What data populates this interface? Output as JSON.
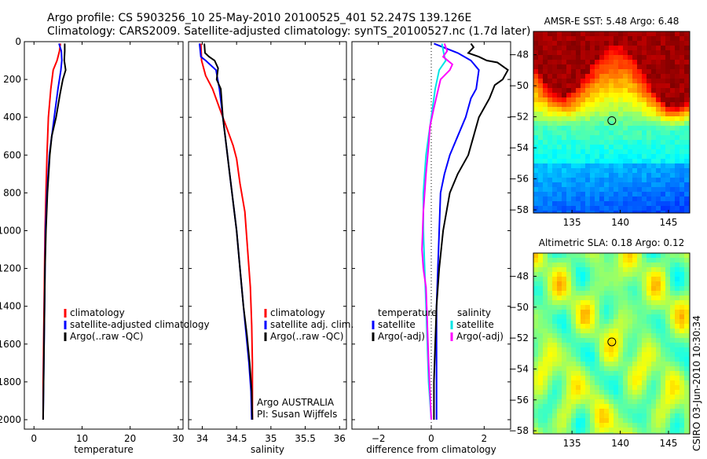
{
  "header": {
    "line1": "Argo profile: CS 5903256_10 25-May-2010 20100525_401 52.247S 139.126E",
    "line2": "Climatology: CARS2009. Satellite-adjusted climatology: synTS_20100527.nc (1.7d later)"
  },
  "footer": "CSIRO 03-Jun-2010 10:30:34",
  "chart_data": [
    {
      "type": "line",
      "xlabel": "temperature",
      "ylabel": "",
      "xlim": [
        -2,
        31
      ],
      "ylim": [
        2050,
        0
      ],
      "xticks": [
        0,
        10,
        20,
        30
      ],
      "yticks": [
        0,
        200,
        400,
        600,
        800,
        1000,
        1200,
        1400,
        1600,
        1800,
        2000
      ],
      "legend": [
        "climatology",
        "satellite-adjusted climatology",
        "Argo(..raw -QC)"
      ],
      "series": [
        {
          "name": "climatology",
          "color": "#ff0000",
          "points": [
            [
              5.5,
              10
            ],
            [
              5.3,
              50
            ],
            [
              4.8,
              100
            ],
            [
              4.0,
              150
            ],
            [
              3.5,
              250
            ],
            [
              3.0,
              400
            ],
            [
              2.7,
              600
            ],
            [
              2.5,
              800
            ],
            [
              2.3,
              1000
            ],
            [
              2.2,
              1200
            ],
            [
              2.1,
              1400
            ],
            [
              2.0,
              1600
            ],
            [
              1.9,
              1800
            ],
            [
              1.9,
              2000
            ]
          ]
        },
        {
          "name": "satellite-adjusted climatology",
          "color": "#0000ff",
          "points": [
            [
              5.2,
              10
            ],
            [
              5.7,
              50
            ],
            [
              5.8,
              100
            ],
            [
              5.6,
              150
            ],
            [
              5.0,
              250
            ],
            [
              4.2,
              400
            ],
            [
              3.2,
              600
            ],
            [
              2.7,
              800
            ],
            [
              2.4,
              1000
            ],
            [
              2.3,
              1200
            ],
            [
              2.2,
              1400
            ],
            [
              2.1,
              1600
            ],
            [
              2.0,
              1800
            ],
            [
              1.9,
              2000
            ]
          ]
        },
        {
          "name": "Argo(..raw -QC)",
          "color": "#000000",
          "points": [
            [
              6.4,
              10
            ],
            [
              6.4,
              50
            ],
            [
              6.3,
              100
            ],
            [
              6.6,
              150
            ],
            [
              6.0,
              200
            ],
            [
              5.4,
              280
            ],
            [
              4.6,
              400
            ],
            [
              3.7,
              500
            ],
            [
              3.3,
              600
            ],
            [
              2.8,
              800
            ],
            [
              2.5,
              1000
            ],
            [
              2.3,
              1200
            ],
            [
              2.2,
              1400
            ],
            [
              2.1,
              1600
            ],
            [
              2.0,
              1800
            ],
            [
              1.9,
              2000
            ]
          ]
        }
      ]
    },
    {
      "type": "line",
      "xlabel": "salinity",
      "xlim": [
        33.8,
        36.1
      ],
      "ylim": [
        2050,
        0
      ],
      "xticks": [
        34,
        34.5,
        35,
        35.5,
        36
      ],
      "yticks": [
        0,
        200,
        400,
        600,
        800,
        1000,
        1200,
        1400,
        1600,
        1800,
        2000
      ],
      "legend": [
        "climatology",
        "satellite adj. clim.",
        "Argo(..raw -QC)"
      ],
      "annotation": [
        "Argo AUSTRALIA",
        "PI: Susan Wijffels"
      ],
      "series": [
        {
          "name": "climatology",
          "color": "#ff0000",
          "points": [
            [
              33.98,
              10
            ],
            [
              33.99,
              100
            ],
            [
              34.05,
              180
            ],
            [
              34.15,
              250
            ],
            [
              34.25,
              350
            ],
            [
              34.35,
              450
            ],
            [
              34.45,
              550
            ],
            [
              34.5,
              620
            ],
            [
              34.55,
              750
            ],
            [
              34.62,
              900
            ],
            [
              34.66,
              1100
            ],
            [
              34.7,
              1300
            ],
            [
              34.72,
              1500
            ],
            [
              34.73,
              1700
            ],
            [
              34.73,
              1900
            ],
            [
              34.73,
              2000
            ]
          ]
        },
        {
          "name": "satellite adj. clim.",
          "color": "#0000ff",
          "points": [
            [
              33.96,
              10
            ],
            [
              33.98,
              80
            ],
            [
              34.05,
              100
            ],
            [
              34.2,
              150
            ],
            [
              34.25,
              250
            ],
            [
              34.3,
              400
            ],
            [
              34.35,
              550
            ],
            [
              34.4,
              700
            ],
            [
              34.45,
              850
            ],
            [
              34.5,
              1000
            ],
            [
              34.55,
              1200
            ],
            [
              34.6,
              1400
            ],
            [
              34.64,
              1550
            ],
            [
              34.68,
              1700
            ],
            [
              34.71,
              1850
            ],
            [
              34.72,
              2000
            ]
          ]
        },
        {
          "name": "Argo(..raw -QC)",
          "color": "#000000",
          "points": [
            [
              34.03,
              10
            ],
            [
              34.04,
              60
            ],
            [
              34.1,
              80
            ],
            [
              34.18,
              100
            ],
            [
              34.23,
              140
            ],
            [
              34.21,
              200
            ],
            [
              34.27,
              250
            ],
            [
              34.3,
              400
            ],
            [
              34.35,
              550
            ],
            [
              34.4,
              700
            ],
            [
              34.45,
              850
            ],
            [
              34.5,
              1000
            ],
            [
              34.55,
              1200
            ],
            [
              34.6,
              1400
            ],
            [
              34.65,
              1550
            ],
            [
              34.69,
              1700
            ],
            [
              34.72,
              1850
            ],
            [
              34.73,
              2000
            ]
          ]
        }
      ]
    },
    {
      "type": "line",
      "xlabel": "difference from climatology",
      "xlim": [
        -3,
        3
      ],
      "ylim": [
        2050,
        0
      ],
      "xticks": [
        -2,
        0,
        2
      ],
      "yticks": [
        0,
        200,
        400,
        600,
        800,
        1000,
        1200,
        1400,
        1600,
        1800,
        2000
      ],
      "legend_groups": [
        {
          "title": "temperature",
          "entries": [
            "satellite",
            "Argo(-adj)"
          ]
        },
        {
          "title": "salinity",
          "entries": [
            "satellite",
            "Argo(-adj)"
          ]
        }
      ],
      "series": [
        {
          "name": "temperature satellite",
          "color": "#0000ff",
          "points": [
            [
              0.1,
              10
            ],
            [
              1.0,
              60
            ],
            [
              1.5,
              100
            ],
            [
              1.8,
              150
            ],
            [
              1.7,
              250
            ],
            [
              1.5,
              300
            ],
            [
              1.3,
              400
            ],
            [
              1.0,
              500
            ],
            [
              0.7,
              600
            ],
            [
              0.5,
              700
            ],
            [
              0.35,
              800
            ],
            [
              0.3,
              1000
            ],
            [
              0.25,
              1200
            ],
            [
              0.2,
              1400
            ],
            [
              0.2,
              1600
            ],
            [
              0.2,
              1800
            ],
            [
              0.2,
              2000
            ]
          ]
        },
        {
          "name": "temperature Argo(-adj)",
          "color": "#000000",
          "points": [
            [
              1.5,
              10
            ],
            [
              1.6,
              30
            ],
            [
              1.4,
              60
            ],
            [
              1.8,
              80
            ],
            [
              2.1,
              100
            ],
            [
              2.5,
              110
            ],
            [
              2.9,
              150
            ],
            [
              2.7,
              200
            ],
            [
              2.4,
              230
            ],
            [
              2.2,
              300
            ],
            [
              1.8,
              400
            ],
            [
              1.6,
              500
            ],
            [
              1.4,
              600
            ],
            [
              1.0,
              700
            ],
            [
              0.7,
              800
            ],
            [
              0.45,
              1000
            ],
            [
              0.3,
              1200
            ],
            [
              0.2,
              1400
            ],
            [
              0.15,
              1600
            ],
            [
              0.1,
              1800
            ],
            [
              0.1,
              2000
            ]
          ]
        },
        {
          "name": "salinity satellite",
          "color": "#00e5e5",
          "points": [
            [
              0.4,
              10
            ],
            [
              0.5,
              80
            ],
            [
              0.55,
              100
            ],
            [
              0.3,
              150
            ],
            [
              0.15,
              250
            ],
            [
              0.0,
              400
            ],
            [
              -0.1,
              500
            ],
            [
              -0.2,
              600
            ],
            [
              -0.25,
              700
            ],
            [
              -0.3,
              800
            ],
            [
              -0.3,
              1000
            ],
            [
              -0.25,
              1200
            ],
            [
              -0.2,
              1400
            ],
            [
              -0.15,
              1600
            ],
            [
              -0.1,
              1800
            ],
            [
              0.0,
              2000
            ]
          ]
        },
        {
          "name": "salinity Argo(-adj)",
          "color": "#ff00ff",
          "points": [
            [
              0.5,
              10
            ],
            [
              0.6,
              50
            ],
            [
              0.45,
              80
            ],
            [
              0.8,
              120
            ],
            [
              0.7,
              150
            ],
            [
              0.35,
              200
            ],
            [
              0.1,
              350
            ],
            [
              -0.05,
              450
            ],
            [
              -0.1,
              550
            ],
            [
              -0.2,
              700
            ],
            [
              -0.3,
              900
            ],
            [
              -0.35,
              1100
            ],
            [
              -0.3,
              1200
            ],
            [
              -0.2,
              1300
            ],
            [
              -0.15,
              1500
            ],
            [
              -0.1,
              1700
            ],
            [
              0.0,
              2000
            ]
          ]
        }
      ]
    },
    {
      "type": "heatmap",
      "title": "AMSR-E SST: 5.48 Argo: 6.48",
      "xlim": [
        131,
        147.2
      ],
      "ylim": [
        -58.2,
        -46.5
      ],
      "xticks": [
        135,
        140,
        145
      ],
      "yticks": [
        -48,
        -50,
        -52,
        -54,
        -56,
        -58
      ],
      "marker": [
        139.126,
        -52.247
      ]
    },
    {
      "type": "heatmap",
      "title": "Altimetric SLA: 0.18 Argo: 0.12",
      "xlim": [
        131,
        147.2
      ],
      "ylim": [
        -58.2,
        -46.5
      ],
      "xticks": [
        135,
        140,
        145
      ],
      "yticks": [
        -48,
        -50,
        -52,
        -54,
        -56,
        -58
      ],
      "marker": [
        139.126,
        -52.247
      ]
    }
  ]
}
